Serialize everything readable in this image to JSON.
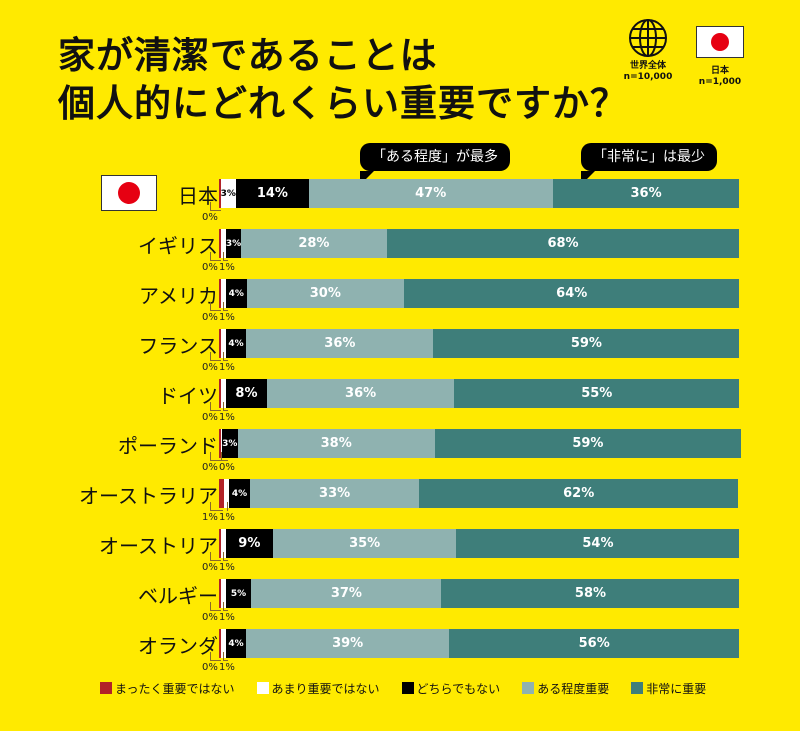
{
  "title_line1": "家が清潔であることは",
  "title_line2": "個人的にどれくらい重要ですか？",
  "icons": {
    "world": {
      "icon": "globe-icon",
      "label": "世界全体",
      "n": "n=10,000"
    },
    "japan": {
      "icon": "japan-flag-icon",
      "label": "日本",
      "n": "n=1,000"
    }
  },
  "callouts": [
    "「ある程度」が最多",
    "「非常に」は最少"
  ],
  "chart_data": {
    "type": "bar",
    "orientation": "horizontal-stacked-100",
    "categories": [
      "日本",
      "イギリス",
      "アメリカ",
      "フランス",
      "ドイツ",
      "ポーランド",
      "オーストラリア",
      "オーストリア",
      "ベルギー",
      "オランダ"
    ],
    "series": [
      {
        "name": "まったく重要ではない",
        "color": "#B22228",
        "values": [
          0,
          0,
          0,
          0,
          0,
          0,
          1,
          0,
          0,
          0
        ]
      },
      {
        "name": "あまり重要ではない",
        "color": "#FFFFFF",
        "values": [
          3,
          1,
          1,
          1,
          1,
          0,
          1,
          1,
          1,
          1
        ]
      },
      {
        "name": "どちらでもない",
        "color": "#000000",
        "values": [
          14,
          3,
          4,
          4,
          8,
          3,
          4,
          9,
          5,
          4
        ]
      },
      {
        "name": "ある程度重要",
        "color": "#8FB2B0",
        "values": [
          47,
          28,
          30,
          36,
          36,
          38,
          33,
          35,
          37,
          39
        ]
      },
      {
        "name": "非常に重要",
        "color": "#3E7E7A",
        "values": [
          36,
          68,
          64,
          59,
          55,
          59,
          62,
          54,
          58,
          56
        ]
      }
    ],
    "unit": "%",
    "legend": "bottom"
  }
}
